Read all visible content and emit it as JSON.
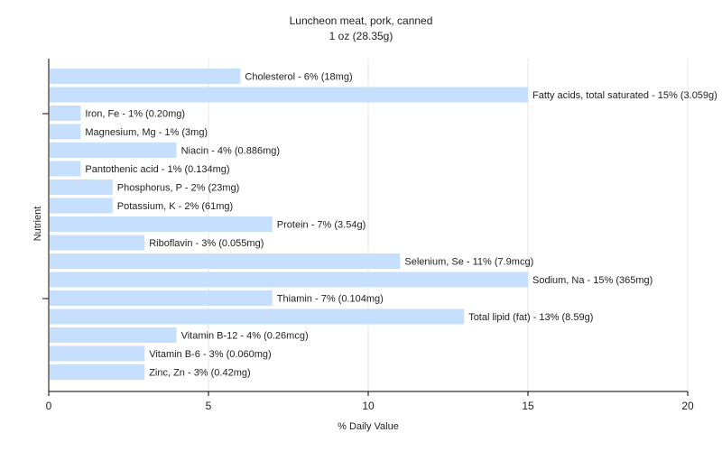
{
  "chart_data": {
    "type": "bar",
    "orientation": "horizontal",
    "title": "Luncheon meat, pork, canned",
    "subtitle": "1 oz (28.35g)",
    "xlabel": "% Daily Value",
    "ylabel": "Nutrient",
    "xlim": [
      0,
      20
    ],
    "x_ticks": [
      0,
      5,
      10,
      15,
      20
    ],
    "grid": true,
    "bar_color": "#c6dffc",
    "categories": [
      "Cholesterol",
      "Fatty acids, total saturated",
      "Iron, Fe",
      "Magnesium, Mg",
      "Niacin",
      "Pantothenic acid",
      "Phosphorus, P",
      "Potassium, K",
      "Protein",
      "Riboflavin",
      "Selenium, Se",
      "Sodium, Na",
      "Thiamin",
      "Total lipid (fat)",
      "Vitamin B-12",
      "Vitamin B-6",
      "Zinc, Zn"
    ],
    "values": [
      6,
      15,
      1,
      1,
      4,
      1,
      2,
      2,
      7,
      3,
      11,
      15,
      7,
      13,
      4,
      3,
      3
    ],
    "labels": [
      "Cholesterol - 6% (18mg)",
      "Fatty acids, total saturated - 15% (3.059g)",
      "Iron, Fe - 1% (0.20mg)",
      "Magnesium, Mg - 1% (3mg)",
      "Niacin - 4% (0.886mg)",
      "Pantothenic acid - 1% (0.134mg)",
      "Phosphorus, P - 2% (23mg)",
      "Potassium, K - 2% (61mg)",
      "Protein - 7% (3.54g)",
      "Riboflavin - 3% (0.055mg)",
      "Selenium, Se - 11% (7.9mcg)",
      "Sodium, Na - 15% (365mg)",
      "Thiamin - 7% (0.104mg)",
      "Total lipid (fat) - 13% (8.59g)",
      "Vitamin B-12 - 4% (0.26mcg)",
      "Vitamin B-6 - 3% (0.060mg)",
      "Zinc, Zn - 3% (0.42mg)"
    ]
  }
}
